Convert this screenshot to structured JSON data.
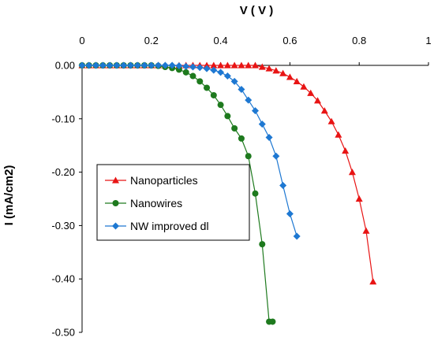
{
  "chart_data": {
    "type": "scatter",
    "xlabel": "V ( V )",
    "ylabel": "I (mA/cm2)",
    "xlim": [
      0,
      1
    ],
    "ylim": [
      -0.5,
      0.0
    ],
    "xticks": [
      "0",
      "0.2",
      "0.4",
      "0.6",
      "0.8",
      "1"
    ],
    "xtick_values": [
      0,
      0.2,
      0.4,
      0.6,
      0.8,
      1
    ],
    "yticks": [
      "0.00",
      "-0.10",
      "-0.20",
      "-0.30",
      "-0.40",
      "-0.50"
    ],
    "ytick_values": [
      0,
      -0.1,
      -0.2,
      -0.3,
      -0.4,
      -0.5
    ],
    "grid": false,
    "legend": "center-left",
    "series": [
      {
        "name": "Nanoparticles",
        "color": "#e81414",
        "marker": "triangle",
        "x": [
          0,
          0.02,
          0.04,
          0.06,
          0.08,
          0.1,
          0.12,
          0.14,
          0.16,
          0.18,
          0.2,
          0.22,
          0.24,
          0.26,
          0.28,
          0.3,
          0.32,
          0.34,
          0.36,
          0.38,
          0.4,
          0.42,
          0.44,
          0.46,
          0.48,
          0.5,
          0.52,
          0.54,
          0.56,
          0.58,
          0.6,
          0.62,
          0.64,
          0.66,
          0.68,
          0.7,
          0.72,
          0.74,
          0.76,
          0.78,
          0.8,
          0.82,
          0.84
        ],
        "y": [
          0.0,
          0.0,
          0.001,
          0.001,
          0.001,
          0.002,
          0.001,
          0.002,
          0.002,
          0.001,
          0.002,
          0.002,
          0.003,
          0.002,
          0.002,
          0.003,
          0.003,
          0.004,
          0.004,
          0.003,
          0.003,
          0.004,
          0.003,
          0.003,
          0.002,
          0.0,
          -0.003,
          -0.006,
          -0.01,
          -0.015,
          -0.022,
          -0.03,
          -0.04,
          -0.052,
          -0.066,
          -0.085,
          -0.105,
          -0.13,
          -0.16,
          -0.2,
          -0.25,
          -0.31,
          -0.405
        ]
      },
      {
        "name": "Nanowires",
        "color": "#1e7a1e",
        "marker": "circle",
        "x": [
          0,
          0.02,
          0.04,
          0.06,
          0.08,
          0.1,
          0.12,
          0.14,
          0.16,
          0.18,
          0.2,
          0.22,
          0.24,
          0.26,
          0.28,
          0.3,
          0.32,
          0.34,
          0.36,
          0.38,
          0.4,
          0.42,
          0.44,
          0.46,
          0.48,
          0.5,
          0.52,
          0.54,
          0.55
        ],
        "y": [
          0.0,
          0.0,
          0.002,
          0.003,
          0.005,
          0.004,
          0.003,
          0.003,
          0.002,
          0.002,
          0.0,
          -0.001,
          -0.003,
          -0.005,
          -0.008,
          -0.013,
          -0.02,
          -0.03,
          -0.042,
          -0.056,
          -0.074,
          -0.095,
          -0.118,
          -0.137,
          -0.17,
          -0.24,
          -0.335,
          -0.48,
          -0.48
        ]
      },
      {
        "name": "NW improved dl",
        "color": "#1e78d2",
        "marker": "diamond",
        "x": [
          0,
          0.02,
          0.04,
          0.06,
          0.08,
          0.1,
          0.12,
          0.14,
          0.16,
          0.18,
          0.2,
          0.22,
          0.24,
          0.26,
          0.28,
          0.3,
          0.32,
          0.34,
          0.36,
          0.38,
          0.4,
          0.42,
          0.44,
          0.46,
          0.48,
          0.5,
          0.52,
          0.54,
          0.56,
          0.58,
          0.6,
          0.62
        ],
        "y": [
          0.0,
          0.002,
          0.005,
          0.009,
          0.008,
          0.006,
          0.004,
          0.007,
          0.003,
          0.004,
          0.002,
          0.001,
          0.001,
          0.0,
          -0.001,
          -0.002,
          -0.003,
          -0.004,
          -0.006,
          -0.009,
          -0.013,
          -0.02,
          -0.03,
          -0.045,
          -0.065,
          -0.085,
          -0.11,
          -0.135,
          -0.17,
          -0.225,
          -0.278,
          -0.32
        ]
      }
    ]
  }
}
